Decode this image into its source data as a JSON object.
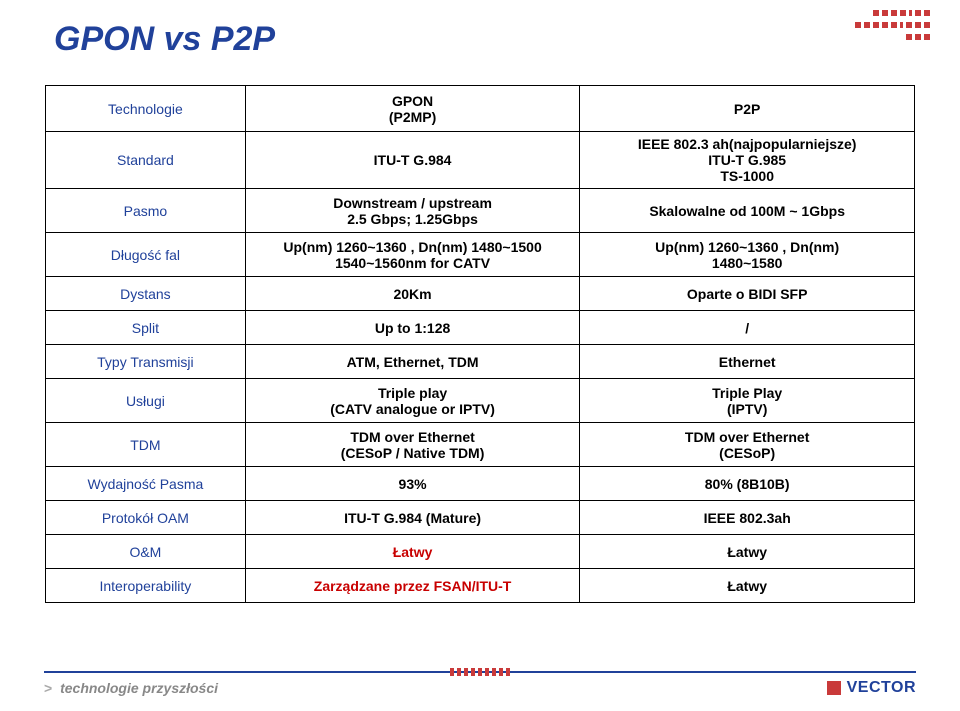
{
  "title": "GPON vs P2P",
  "columns": {
    "label0": "Technologie",
    "colA": "GPON\n(P2MP)",
    "colB": "P2P"
  },
  "rows": [
    {
      "label": "Standard",
      "a": "ITU-T G.984",
      "b": "IEEE 802.3 ah(najpopularniejsze)\nITU-T G.985\nTS-1000",
      "cls": "tall"
    },
    {
      "label": "Pasmo",
      "a": "Downstream / upstream\n2.5 Gbps; 1.25Gbps",
      "b": "Skalowalne od 100M ~ 1Gbps",
      "cls": "tallmed"
    },
    {
      "label": "Długość fal",
      "a": "Up(nm) 1260~1360 , Dn(nm) 1480~1500\n1540~1560nm for CATV",
      "b": "Up(nm) 1260~1360 , Dn(nm)\n1480~1580",
      "cls": "tallmed"
    },
    {
      "label": "Dystans",
      "a": "20Km",
      "b": "Oparte o BIDI SFP"
    },
    {
      "label": "Split",
      "a": "Up to 1:128",
      "b": "/"
    },
    {
      "label": "Typy Transmisji",
      "a": "ATM, Ethernet, TDM",
      "b": "Ethernet"
    },
    {
      "label": "Usługi",
      "a": "Triple play\n(CATV analogue or IPTV)",
      "b": "Triple Play\n(IPTV)",
      "cls": "tallmed"
    },
    {
      "label": "TDM",
      "a": "TDM over Ethernet\n(CESoP  / Native TDM)",
      "b": "TDM over Ethernet\n(CESoP)",
      "cls": "tallmed"
    },
    {
      "label": "Wydajność Pasma",
      "a": "93%",
      "b": "80% (8B10B)"
    },
    {
      "label": "Protokół OAM",
      "a": "ITU-T G.984 (Mature)",
      "b": "IEEE 802.3ah"
    },
    {
      "label": "O&M",
      "a": "Łatwy",
      "a_red": true,
      "b": "Łatwy"
    },
    {
      "label": "Interoperability",
      "a": "Zarządzane przez FSAN/ITU-T",
      "a_red": true,
      "b": "Łatwy"
    }
  ],
  "footer": {
    "tagline": "technologie przyszłości",
    "brand": "VECTOR"
  },
  "styling": {
    "page_bg": "#ffffff",
    "title_color": "#20419a",
    "title_fontsize": 34,
    "table_border_color": "#000000",
    "rowlabel_color": "#20419a",
    "cell_fontsize": 14,
    "red_text": "#c80000",
    "accent_red": "#c93a3a",
    "footer_rule": "#20419a",
    "footer_text": "#888888"
  }
}
